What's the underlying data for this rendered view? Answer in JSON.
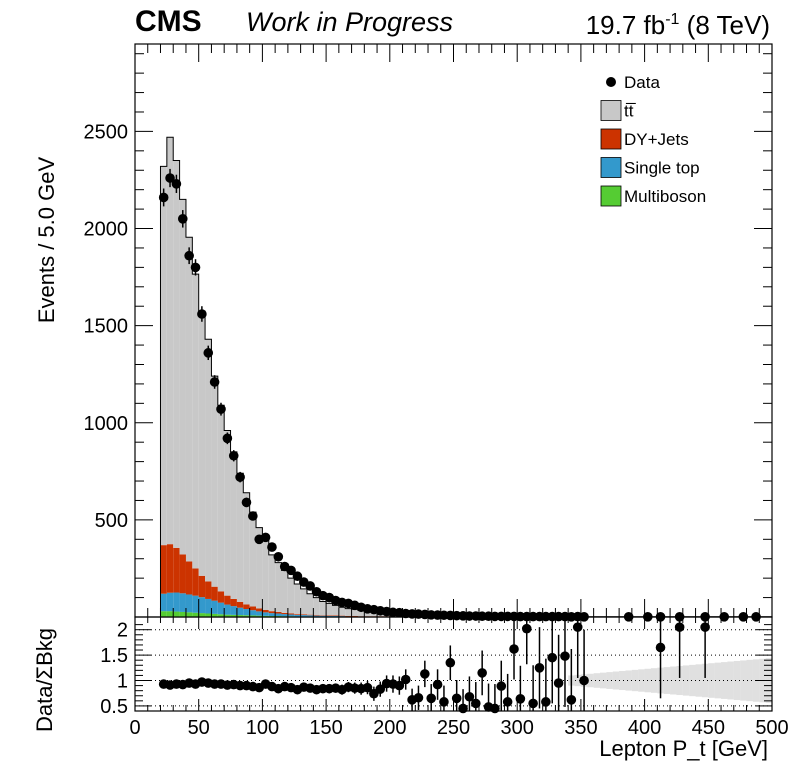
{
  "header": {
    "cms": "CMS",
    "wip": "Work in Progress",
    "lumi_pre": "19.7 fb",
    "lumi_sup": "-1",
    "lumi_post": " (8 TeV)"
  },
  "chart_data": [
    {
      "type": "bar",
      "panel": "main",
      "stacked": true,
      "ylabel": "Events / 5.0 GeV",
      "xlim": [
        0,
        500
      ],
      "ylim": [
        0,
        2950
      ],
      "yticks": [
        500,
        1000,
        1500,
        2000,
        2500
      ],
      "ytick_labels": [
        "500",
        "1000",
        "1500",
        "2000",
        "2500"
      ],
      "bin_width": 5,
      "x_first_bin_low": 20,
      "legend_position": "top-right",
      "series": [
        {
          "name": "Multiboson",
          "color": "#55cc33",
          "values": [
            30,
            30,
            28,
            26,
            24,
            22,
            20,
            18,
            16,
            14,
            12,
            11,
            10,
            9,
            8,
            7,
            6,
            5,
            5,
            4,
            4,
            3,
            3,
            3,
            2,
            2,
            2,
            2,
            2,
            1,
            1,
            1,
            1,
            1,
            1,
            1,
            1,
            1,
            1,
            1,
            1,
            1,
            1,
            1,
            1,
            0,
            0,
            0,
            0,
            0,
            0,
            0,
            0,
            0,
            0,
            0,
            0,
            0,
            0,
            0,
            0,
            0,
            0,
            0,
            0,
            0,
            0,
            0,
            0,
            0,
            0,
            0,
            0,
            0,
            0,
            0,
            0,
            0,
            0,
            0,
            0,
            0,
            0,
            0,
            0,
            0,
            0,
            0,
            0,
            0,
            0,
            0,
            0,
            0,
            0,
            0
          ]
        },
        {
          "name": "Single top",
          "color": "#3399cc",
          "values": [
            90,
            95,
            98,
            96,
            92,
            88,
            82,
            75,
            68,
            60,
            52,
            45,
            38,
            32,
            27,
            22,
            18,
            15,
            13,
            11,
            9,
            8,
            7,
            6,
            5,
            5,
            4,
            4,
            3,
            3,
            3,
            2,
            2,
            2,
            2,
            2,
            1,
            1,
            1,
            1,
            1,
            1,
            1,
            1,
            1,
            1,
            0,
            0,
            0,
            0,
            0,
            0,
            0,
            0,
            0,
            0,
            0,
            0,
            0,
            0,
            0,
            0,
            0,
            0,
            0,
            0,
            0,
            0,
            0,
            0,
            0,
            0,
            0,
            0,
            0,
            0,
            0,
            0,
            0,
            0,
            0,
            0,
            0,
            0,
            0,
            0,
            0,
            0,
            0,
            0,
            0,
            0,
            0,
            0,
            0,
            0
          ]
        },
        {
          "name": "DY+Jets",
          "color": "#cc3300",
          "values": [
            250,
            250,
            230,
            200,
            170,
            140,
            110,
            90,
            72,
            58,
            46,
            37,
            30,
            24,
            19,
            15,
            12,
            10,
            8,
            6,
            5,
            4,
            4,
            3,
            3,
            2,
            2,
            2,
            2,
            1,
            1,
            1,
            1,
            1,
            1,
            1,
            1,
            1,
            1,
            1,
            1,
            1,
            1,
            1,
            1,
            1,
            0,
            0,
            0,
            0,
            0,
            0,
            0,
            0,
            0,
            0,
            0,
            0,
            0,
            0,
            0,
            0,
            0,
            0,
            0,
            0,
            0,
            0,
            0,
            0,
            0,
            0,
            0,
            0,
            0,
            0,
            0,
            0,
            0,
            0,
            0,
            0,
            0,
            0,
            0,
            0,
            0,
            0,
            0,
            0,
            0,
            0,
            0,
            0,
            0,
            0
          ]
        },
        {
          "name": "tt̅",
          "color": "#c8c8c8",
          "values": [
            1950,
            2095,
            1994,
            1828,
            1669,
            1515,
            1358,
            1247,
            1084,
            958,
            850,
            757,
            662,
            575,
            486,
            416,
            364,
            290,
            254,
            219,
            182,
            155,
            131,
            108,
            90,
            71,
            62,
            52,
            43,
            38,
            35,
            30,
            26,
            24,
            22,
            20,
            17,
            16,
            14,
            13,
            11,
            10,
            9,
            8,
            7,
            6,
            6,
            5,
            5,
            4,
            4,
            4,
            3,
            3,
            3,
            3,
            2,
            2,
            2,
            2,
            2,
            2,
            2,
            1,
            1,
            1,
            1,
            1,
            1,
            1,
            1,
            1,
            1,
            1,
            1,
            1,
            1,
            1,
            1,
            1,
            1,
            1,
            1,
            1,
            1,
            1,
            1,
            1,
            1,
            1,
            1,
            1,
            1,
            1,
            1,
            1
          ]
        }
      ],
      "data_points": {
        "name": "Data",
        "x": [
          22.5,
          27.5,
          32.5,
          37.5,
          42.5,
          47.5,
          52.5,
          57.5,
          62.5,
          67.5,
          72.5,
          77.5,
          82.5,
          87.5,
          92.5,
          97.5,
          102.5,
          107.5,
          112.5,
          117.5,
          122.5,
          127.5,
          132.5,
          137.5,
          142.5,
          147.5,
          152.5,
          157.5,
          162.5,
          167.5,
          172.5,
          177.5,
          182.5,
          187.5,
          192.5,
          197.5,
          202.5,
          207.5,
          212.5,
          217.5,
          222.5,
          227.5,
          232.5,
          237.5,
          242.5,
          247.5,
          252.5,
          257.5,
          262.5,
          267.5,
          272.5,
          277.5,
          282.5,
          287.5,
          292.5,
          297.5,
          302.5,
          307.5,
          312.5,
          317.5,
          322.5,
          327.5,
          332.5,
          337.5,
          342.5,
          347.5,
          352.5,
          387.5,
          402.5,
          412.5,
          427.5,
          447.5,
          462.5,
          477.5,
          487.5
        ],
        "y": [
          2160,
          2260,
          2230,
          2050,
          1860,
          1800,
          1560,
          1360,
          1210,
          1070,
          920,
          830,
          720,
          590,
          520,
          400,
          410,
          360,
          310,
          260,
          240,
          210,
          180,
          160,
          130,
          110,
          100,
          85,
          75,
          70,
          60,
          50,
          42,
          38,
          32,
          28,
          24,
          22,
          18,
          16,
          15,
          13,
          11,
          10,
          9,
          8,
          7,
          6,
          5,
          5,
          4,
          4,
          3,
          3,
          3,
          3,
          2,
          2,
          2,
          2,
          2,
          2,
          2,
          2,
          1,
          2,
          1,
          1,
          1,
          1,
          1,
          1,
          1,
          1,
          1
        ],
        "err": [
          46,
          47,
          47,
          45,
          43,
          42,
          40,
          37,
          35,
          33,
          30,
          29,
          27,
          24,
          23,
          20,
          20,
          19,
          18,
          16,
          15,
          15,
          13,
          13,
          11,
          10,
          10,
          9,
          9,
          8,
          8,
          7,
          6,
          6,
          6,
          5,
          5,
          5,
          4,
          4,
          4,
          4,
          3,
          3,
          3,
          3,
          3,
          2,
          2,
          2,
          2,
          2,
          2,
          2,
          2,
          2,
          1,
          1,
          1,
          1,
          1,
          1,
          1,
          1,
          1,
          1,
          1,
          1,
          1,
          1,
          1,
          1,
          1,
          1,
          1
        ]
      }
    },
    {
      "type": "scatter",
      "panel": "ratio",
      "ylabel": "Data/ΣBkg",
      "xlabel": "Lepton P_t [GeV]",
      "xlim": [
        0,
        500
      ],
      "ylim": [
        0.4,
        2.25
      ],
      "yticks": [
        0.5,
        1,
        1.5,
        2
      ],
      "ytick_labels": [
        "0.5",
        "1",
        "1.5",
        "2"
      ],
      "xticks": [
        0,
        50,
        100,
        150,
        200,
        250,
        300,
        350,
        400,
        450,
        500
      ],
      "xtick_labels": [
        "0",
        "50",
        "100",
        "150",
        "200",
        "250",
        "300",
        "350",
        "400",
        "450",
        "500"
      ],
      "grid": "dotted horizontal at 0.5, 1, 1.5, 2",
      "points": {
        "x": [
          22.5,
          27.5,
          32.5,
          37.5,
          42.5,
          47.5,
          52.5,
          57.5,
          62.5,
          67.5,
          72.5,
          77.5,
          82.5,
          87.5,
          92.5,
          97.5,
          102.5,
          107.5,
          112.5,
          117.5,
          122.5,
          127.5,
          132.5,
          137.5,
          142.5,
          147.5,
          152.5,
          157.5,
          162.5,
          167.5,
          172.5,
          177.5,
          182.5,
          187.5,
          192.5,
          197.5,
          202.5,
          207.5,
          212.5,
          217.5,
          222.5,
          227.5,
          232.5,
          237.5,
          242.5,
          247.5,
          252.5,
          257.5,
          262.5,
          267.5,
          272.5,
          277.5,
          282.5,
          287.5,
          292.5,
          297.5,
          302.5,
          307.5,
          312.5,
          317.5,
          322.5,
          327.5,
          332.5,
          337.5,
          342.5,
          347.5,
          352.5,
          412.5,
          427.5,
          447.5
        ],
        "y": [
          0.93,
          0.91,
          0.93,
          0.92,
          0.95,
          0.93,
          0.97,
          0.95,
          0.93,
          0.93,
          0.91,
          0.92,
          0.9,
          0.9,
          0.88,
          0.86,
          0.93,
          0.88,
          0.84,
          0.88,
          0.86,
          0.82,
          0.87,
          0.85,
          0.82,
          0.84,
          0.84,
          0.85,
          0.82,
          0.87,
          0.85,
          0.84,
          0.86,
          0.74,
          0.83,
          0.94,
          0.93,
          0.9,
          1.02,
          0.62,
          0.66,
          1.13,
          0.65,
          0.92,
          0.58,
          1.35,
          0.65,
          0.45,
          0.68,
          0.55,
          1.15,
          0.48,
          0.45,
          0.89,
          0.58,
          1.62,
          0.64,
          2.02,
          0.55,
          1.25,
          0.58,
          1.45,
          0.95,
          1.48,
          0.62,
          2.05,
          1.0,
          1.65,
          2.05,
          2.05
        ],
        "err": [
          0.02,
          0.02,
          0.02,
          0.02,
          0.02,
          0.02,
          0.03,
          0.03,
          0.03,
          0.03,
          0.03,
          0.03,
          0.04,
          0.04,
          0.04,
          0.04,
          0.05,
          0.05,
          0.05,
          0.06,
          0.06,
          0.06,
          0.07,
          0.07,
          0.08,
          0.08,
          0.09,
          0.09,
          0.1,
          0.1,
          0.11,
          0.12,
          0.13,
          0.14,
          0.15,
          0.16,
          0.17,
          0.18,
          0.2,
          0.22,
          0.24,
          0.26,
          0.28,
          0.3,
          0.32,
          0.34,
          0.36,
          0.38,
          0.4,
          0.42,
          0.44,
          0.46,
          0.48,
          0.5,
          0.55,
          0.6,
          0.65,
          0.7,
          0.75,
          0.8,
          0.85,
          0.9,
          0.95,
          1.0,
          1.0,
          1.0,
          1.0,
          1.0,
          1.0,
          1.0
        ]
      },
      "uncertainty_band": {
        "color": "#cccccc",
        "x_range": [
          340,
          500
        ],
        "half_width_at_start": 0.1,
        "half_width_at_end": 0.45
      }
    }
  ]
}
